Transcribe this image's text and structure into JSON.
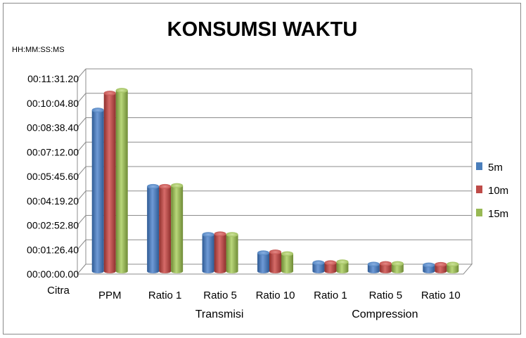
{
  "chart_data": {
    "type": "bar",
    "title": "KONSUMSI WAKTU",
    "unit_label": "HH:MM:SS:MS",
    "x_axis_title": "Citra",
    "categories": [
      "PPM",
      "Ratio 1",
      "Ratio 5",
      "Ratio 10",
      "Ratio 1",
      "Ratio 5",
      "Ratio 10"
    ],
    "groups": [
      {
        "label": "Transmisi",
        "start": 1,
        "end": 3
      },
      {
        "label": "Compression",
        "start": 4,
        "end": 6
      }
    ],
    "y_ticks": [
      "00:00:00.00",
      "00:01:26.40",
      "00:02:52.80",
      "00:04:19.20",
      "00:05:45.60",
      "00:07:12.00",
      "00:08:38.40",
      "00:10:04.80",
      "00:11:31.20"
    ],
    "ylim_seconds": [
      0,
      691.2
    ],
    "y_tick_step_seconds": 86.4,
    "series": [
      {
        "name": "5m",
        "color": "#4a7ebb",
        "values_seconds": [
          570,
          300,
          130,
          65,
          30,
          25,
          22
        ]
      },
      {
        "name": "10m",
        "color": "#be4b48",
        "values_seconds": [
          630,
          300,
          132,
          68,
          30,
          27,
          24
        ]
      },
      {
        "name": "15m",
        "color": "#98b954",
        "values_seconds": [
          640,
          303,
          130,
          62,
          33,
          27,
          25
        ]
      }
    ],
    "grid": true,
    "legend_position": "right"
  }
}
